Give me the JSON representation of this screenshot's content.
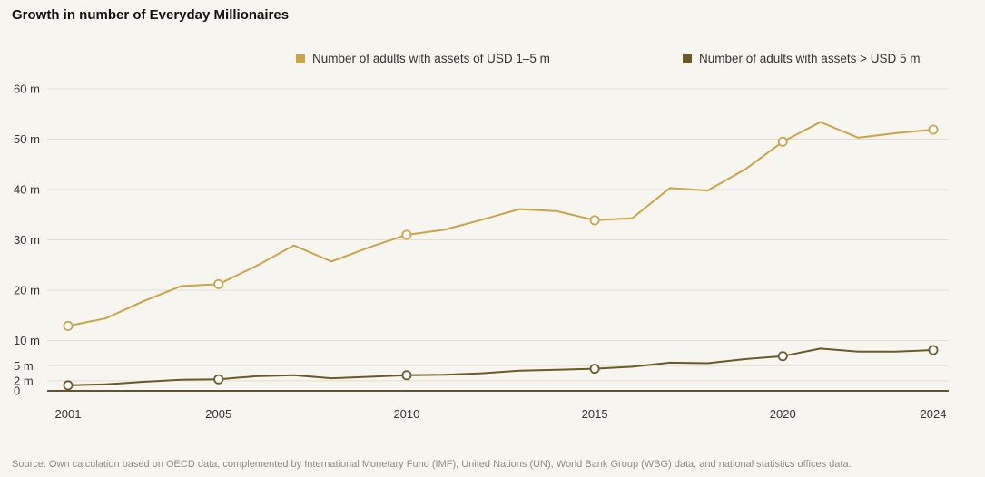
{
  "title": "Growth in number of Everyday Millionaires",
  "source": "Source: Own calculation based on OECD data, complemented by International Monetary Fund (IMF), United Nations (UN), World Bank Group (WBG) data, and national statistics offices data.",
  "colors": {
    "series1": "#c9a449",
    "series2": "#6b5a26",
    "grid": "#e2ddd0",
    "axis": "#4a3d1c",
    "background": "#f7f5f0"
  },
  "chart_data": {
    "type": "line",
    "title": "Growth in number of Everyday Millionaires",
    "x": [
      2001,
      2002,
      2003,
      2004,
      2005,
      2006,
      2007,
      2008,
      2009,
      2010,
      2011,
      2012,
      2013,
      2014,
      2015,
      2016,
      2017,
      2018,
      2019,
      2020,
      2021,
      2022,
      2023,
      2024
    ],
    "series": [
      {
        "name": "Number of adults with assets of USD 1–5 m",
        "values": [
          12.9,
          14.4,
          17.8,
          20.8,
          21.2,
          24.8,
          28.9,
          25.7,
          28.5,
          31.0,
          32.0,
          34.0,
          36.1,
          35.7,
          33.9,
          34.3,
          40.3,
          39.8,
          44.0,
          49.5,
          53.4,
          50.3,
          51.2,
          51.9
        ],
        "markers": [
          2001,
          2005,
          2010,
          2015,
          2020,
          2024
        ]
      },
      {
        "name": "Number of adults with assets > USD 5 m",
        "values": [
          1.1,
          1.3,
          1.8,
          2.2,
          2.3,
          2.9,
          3.1,
          2.5,
          2.8,
          3.1,
          3.2,
          3.5,
          4.0,
          4.2,
          4.4,
          4.8,
          5.6,
          5.5,
          6.3,
          6.9,
          8.4,
          7.8,
          7.8,
          8.1
        ],
        "markers": [
          2001,
          2005,
          2010,
          2015,
          2020,
          2024
        ]
      }
    ],
    "y_ticks": [
      {
        "value": 0,
        "label": "0"
      },
      {
        "value": 2,
        "label": "2 m"
      },
      {
        "value": 5,
        "label": "5 m"
      },
      {
        "value": 10,
        "label": "10 m"
      },
      {
        "value": 20,
        "label": "20 m"
      },
      {
        "value": 30,
        "label": "30 m"
      },
      {
        "value": 40,
        "label": "40 m"
      },
      {
        "value": 50,
        "label": "50 m"
      },
      {
        "value": 60,
        "label": "60 m"
      }
    ],
    "x_ticks": [
      2001,
      2005,
      2010,
      2015,
      2020,
      2024
    ],
    "ylim": [
      0,
      60
    ],
    "xlim": [
      2001,
      2024
    ],
    "grid": true,
    "legend_position": "top-right"
  }
}
